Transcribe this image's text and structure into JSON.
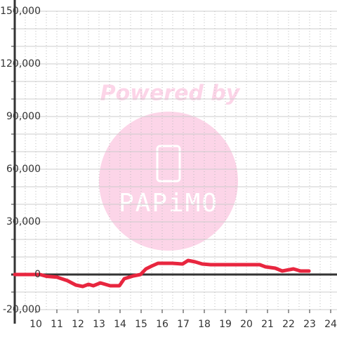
{
  "chart_data": {
    "type": "line",
    "watermark": {
      "line1": "Powered by",
      "line2": "PAPiMO"
    },
    "x": [
      9,
      10.2,
      10.5,
      11,
      11.5,
      11.9,
      12.23,
      12.5,
      12.73,
      13.07,
      13.53,
      13.97,
      14.2,
      14.63,
      14.97,
      15.23,
      15.5,
      15.8,
      16.47,
      16.97,
      17.23,
      17.57,
      17.9,
      18.3,
      19.97,
      20.63,
      20.9,
      21.37,
      21.7,
      22.23,
      22.57,
      22.97
    ],
    "series": [
      {
        "color": "#e8263f",
        "values": [
          0,
          0,
          -1000,
          -1500,
          -3500,
          -6000,
          -6800,
          -5600,
          -6400,
          -4800,
          -6400,
          -6400,
          -2400,
          -800,
          0,
          3200,
          4800,
          6400,
          6400,
          6000,
          8000,
          7200,
          6000,
          5600,
          5600,
          5600,
          4400,
          3600,
          2000,
          3200,
          2000,
          2000
        ]
      }
    ],
    "xlim": [
      9,
      24.3
    ],
    "xticks": [
      10,
      11,
      12,
      13,
      14,
      15,
      16,
      17,
      18,
      19,
      20,
      21,
      22,
      23,
      24
    ],
    "xgrid": [
      9.5,
      10,
      10.5,
      11,
      11.5,
      12,
      12.5,
      13,
      13.5,
      14,
      14.5,
      15,
      15.5,
      16,
      16.5,
      17,
      17.5,
      18,
      18.5,
      19,
      19.5,
      20,
      20.5,
      21,
      21.5,
      22,
      22.5,
      23,
      23.5,
      24
    ],
    "ylim": [
      -20000,
      150000
    ],
    "yticks": [
      {
        "value": 150000,
        "label": "150,000"
      },
      {
        "value": 120000,
        "label": "120,000"
      },
      {
        "value": 90000,
        "label": "90,000"
      },
      {
        "value": 60000,
        "label": "60,000"
      },
      {
        "value": 30000,
        "label": "30,000"
      },
      0,
      {
        "value": -20000,
        "label": "-20,000"
      }
    ],
    "ygrid": [
      -20000,
      -10000,
      10000,
      20000,
      30000,
      40000,
      50000,
      60000,
      70000,
      80000,
      90000,
      100000,
      110000,
      120000,
      130000,
      140000,
      150000
    ],
    "grid": true
  }
}
